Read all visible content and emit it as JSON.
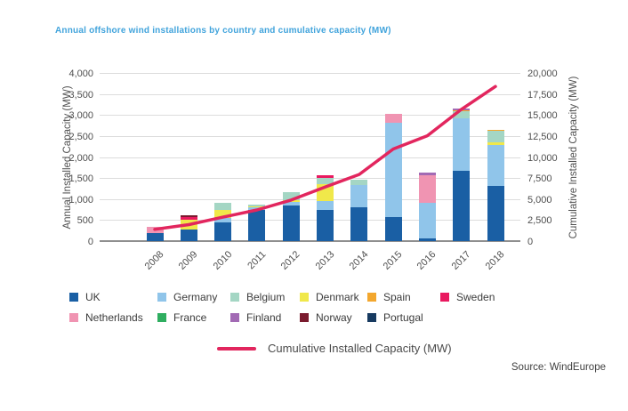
{
  "title": "Annual offshore wind installations by country and cumulative capacity (MW)",
  "source": "Source: WindEurope",
  "line_legend_label": "Cumulative Installed Capacity (MW)",
  "axes": {
    "left_label": "Annual Installed Capacity (MW)",
    "right_label": "Cumulative Installed Capacity (MW)",
    "left_ticks": [
      "0",
      "500",
      "1,000",
      "1,500",
      "2,000",
      "2,500",
      "3,000",
      "3,500",
      "4,000"
    ],
    "right_ticks": [
      "0",
      "2,500",
      "5,000",
      "7,500",
      "10,000",
      "12,500",
      "15,000",
      "17,500",
      "20,000"
    ]
  },
  "chart_data": {
    "type": "bar",
    "subtype": "stacked-bars-with-cumulative-line",
    "title": "Annual offshore wind installations by country and cumulative capacity (MW)",
    "xlabel": "",
    "ylabel_left": "Annual Installed Capacity (MW)",
    "ylabel_right": "Cumulative Installed Capacity (MW)",
    "ylim_left": [
      0,
      4000
    ],
    "ylim_right": [
      0,
      20000
    ],
    "grid": true,
    "legend_position": "bottom",
    "categories": [
      "2008",
      "2009",
      "2010",
      "2011",
      "2012",
      "2013",
      "2014",
      "2015",
      "2016",
      "2017",
      "2018"
    ],
    "series": [
      {
        "name": "UK",
        "color": "#1a5fa4",
        "values": [
          200,
          285,
          450,
          750,
          850,
          735,
          800,
          570,
          55,
          1680,
          1310
        ]
      },
      {
        "name": "Germany",
        "color": "#90c5ea",
        "values": [
          0,
          0,
          105,
          50,
          80,
          210,
          530,
          2250,
          845,
          1250,
          970
        ]
      },
      {
        "name": "Denmark",
        "color": "#f0e84a",
        "values": [
          0,
          230,
          180,
          30,
          50,
          400,
          0,
          0,
          0,
          0,
          60
        ]
      },
      {
        "name": "Belgium",
        "color": "#a4d6c4",
        "values": [
          0,
          0,
          170,
          40,
          185,
          155,
          140,
          0,
          0,
          165,
          280
        ]
      },
      {
        "name": "Spain",
        "color": "#f3a72e",
        "values": [
          0,
          0,
          0,
          0,
          0,
          0,
          0,
          0,
          0,
          15,
          30
        ]
      },
      {
        "name": "Sweden",
        "color": "#e9195f",
        "values": [
          0,
          60,
          0,
          0,
          0,
          60,
          0,
          0,
          0,
          0,
          0
        ]
      },
      {
        "name": "Netherlands",
        "color": "#f094b2",
        "values": [
          130,
          0,
          0,
          0,
          0,
          0,
          0,
          210,
          660,
          0,
          0
        ]
      },
      {
        "name": "France",
        "color": "#2fae60",
        "values": [
          0,
          0,
          0,
          0,
          0,
          0,
          0,
          0,
          0,
          0,
          0
        ]
      },
      {
        "name": "Finland",
        "color": "#a26ab4",
        "values": [
          0,
          0,
          0,
          0,
          0,
          0,
          0,
          0,
          60,
          45,
          0
        ]
      },
      {
        "name": "Norway",
        "color": "#7a1b2e",
        "values": [
          0,
          45,
          0,
          0,
          0,
          0,
          0,
          0,
          0,
          0,
          0
        ]
      },
      {
        "name": "Portugal",
        "color": "#173a60",
        "values": [
          0,
          0,
          0,
          0,
          0,
          0,
          0,
          0,
          0,
          0,
          0
        ]
      }
    ],
    "line": {
      "name": "Cumulative Installed Capacity (MW)",
      "color": "#e2265e",
      "values": [
        1500,
        2060,
        2950,
        3810,
        4980,
        6540,
        8030,
        11060,
        12630,
        15780,
        18500
      ]
    }
  },
  "legend": {
    "items": [
      {
        "label": "UK",
        "color": "#1a5fa4"
      },
      {
        "label": "Germany",
        "color": "#90c5ea"
      },
      {
        "label": "Belgium",
        "color": "#a4d6c4"
      },
      {
        "label": "Denmark",
        "color": "#f0e84a"
      },
      {
        "label": "Spain",
        "color": "#f3a72e"
      },
      {
        "label": "Sweden",
        "color": "#e9195f"
      },
      {
        "label": "Netherlands",
        "color": "#f094b2"
      },
      {
        "label": "France",
        "color": "#2fae60"
      },
      {
        "label": "Finland",
        "color": "#a26ab4"
      },
      {
        "label": "Norway",
        "color": "#7a1b2e"
      },
      {
        "label": "Portugal",
        "color": "#173a60"
      }
    ]
  },
  "colors": {
    "title": "#42a4dc",
    "axis_text": "#4f4f4f",
    "grid": "#dcdcdc",
    "baseline": "#8f8f8f",
    "line": "#e2265e"
  }
}
